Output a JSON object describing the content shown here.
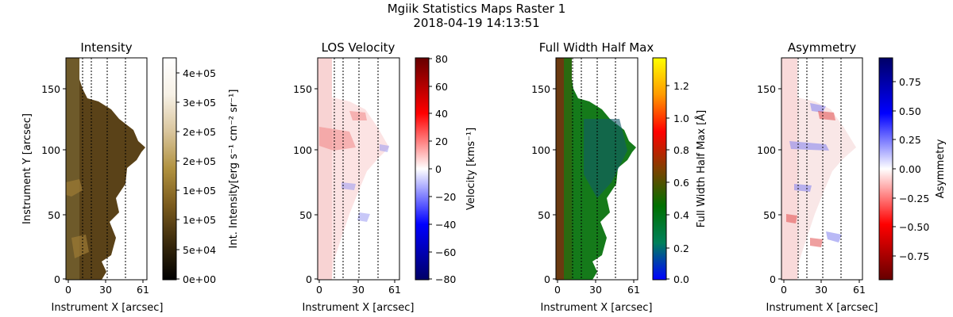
{
  "figure": {
    "title": "Mgiik Statistics Maps Raster 1",
    "subtitle": "2018-04-19 14:13:51"
  },
  "chart_data": [
    {
      "type": "heatmap",
      "title": "Intensity",
      "xlabel": "Instrument X [arcsec]",
      "ylabel": "Instrument Y [arcsec]",
      "x_ticks": [
        "0",
        "30",
        "61"
      ],
      "y_ticks": [
        "0",
        "50",
        "100",
        "150"
      ],
      "xlim": [
        0,
        61
      ],
      "ylim": [
        0,
        172
      ],
      "colormap": [
        "#000000",
        "#3a2a0c",
        "#7a5a1d",
        "#b0913f",
        "#d9c59c",
        "#f7f1e6",
        "#ffffff"
      ],
      "colorbar": {
        "label": "Int. Intensity[erg s⁻¹ cm⁻² sr⁻¹]",
        "ticks": [
          "0e+00",
          "5e+04",
          "1e+05",
          "1e+05",
          "2e+05",
          "2e+05",
          "3e+05",
          "4e+05"
        ],
        "range": [
          0,
          450000
        ]
      }
    },
    {
      "type": "heatmap",
      "title": "LOS Velocity",
      "xlabel": "Instrument X [arcsec]",
      "x_ticks": [
        "0",
        "30",
        "61"
      ],
      "y_ticks": [
        "0",
        "50",
        "100",
        "150"
      ],
      "xlim": [
        0,
        61
      ],
      "ylim": [
        0,
        172
      ],
      "colormap": [
        "#000066",
        "#0000ff",
        "#ffffff",
        "#ff0000",
        "#660000"
      ],
      "colorbar": {
        "label": "Velocity [kms⁻¹]",
        "ticks": [
          "−80",
          "−60",
          "−40",
          "−20",
          "0",
          "20",
          "40",
          "60",
          "80"
        ],
        "range": [
          -80,
          80
        ]
      }
    },
    {
      "type": "heatmap",
      "title": "Full Width Half Max",
      "xlabel": "Instrument X [arcsec]",
      "x_ticks": [
        "0",
        "30",
        "61"
      ],
      "y_ticks": [
        "0",
        "50",
        "100",
        "150"
      ],
      "xlim": [
        0,
        61
      ],
      "ylim": [
        0,
        172
      ],
      "colormap": [
        "#0000ff",
        "#00805a",
        "#007000",
        "#804000",
        "#ff0000",
        "#ff9900",
        "#ffff00"
      ],
      "colorbar": {
        "label": "Full Width Half Max [Å]",
        "ticks": [
          "0.0",
          "0.2",
          "0.4",
          "0.6",
          "0.8",
          "1.0",
          "1.2"
        ],
        "range": [
          0,
          1.36
        ]
      }
    },
    {
      "type": "heatmap",
      "title": "Asymmetry",
      "xlabel": "Instrument X [arcsec]",
      "x_ticks": [
        "0",
        "30",
        "61"
      ],
      "y_ticks": [
        "0",
        "50",
        "100",
        "150"
      ],
      "xlim": [
        0,
        61
      ],
      "ylim": [
        0,
        172
      ],
      "colormap": [
        "#660000",
        "#ff0000",
        "#ffffff",
        "#0000ff",
        "#000066"
      ],
      "colorbar": {
        "label": "Asymmetry",
        "ticks": [
          "−0.75",
          "−0.50",
          "−0.25",
          "0.00",
          "0.25",
          "0.50",
          "0.75"
        ],
        "range": [
          -0.95,
          0.95
        ]
      }
    }
  ]
}
